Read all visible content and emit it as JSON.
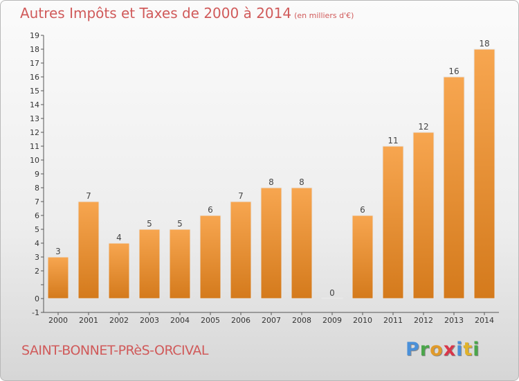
{
  "header": {
    "title": "Autres Impôts et Taxes de 2000 à 2014",
    "unit": "(en milliers d'€)"
  },
  "footer": {
    "commune": "SAINT-BONNET-PRèS-ORCIVAL",
    "logo_letters": [
      "P",
      "r",
      "o",
      "x",
      "i",
      "t",
      "i"
    ],
    "logo_colors": [
      "#4a90d9",
      "#4aa64a",
      "#e09a2a",
      "#d9364a",
      "#4a90d9",
      "#e0b22a",
      "#4aa64a"
    ]
  },
  "chart_data": {
    "type": "bar",
    "title": "Autres Impôts et Taxes de 2000 à 2014",
    "unit": "(en milliers d'€)",
    "categories": [
      "2000",
      "2001",
      "2002",
      "2003",
      "2004",
      "2005",
      "2006",
      "2007",
      "2008",
      "2009",
      "2010",
      "2011",
      "2012",
      "2013",
      "2014"
    ],
    "values": [
      3,
      7,
      4,
      5,
      5,
      6,
      7,
      8,
      8,
      0,
      6,
      11,
      12,
      16,
      18
    ],
    "ylim": [
      -1,
      19
    ],
    "yticks": [
      "-1",
      "0",
      "",
      "2",
      "3",
      "4",
      "5",
      "6",
      "7",
      "8",
      "9",
      "10",
      "11",
      "12",
      "13",
      "14",
      "15",
      "16",
      "17",
      "18",
      "19"
    ],
    "bar_color_top": "#f7a650",
    "bar_color_bottom": "#d47a1c",
    "grid": false
  }
}
